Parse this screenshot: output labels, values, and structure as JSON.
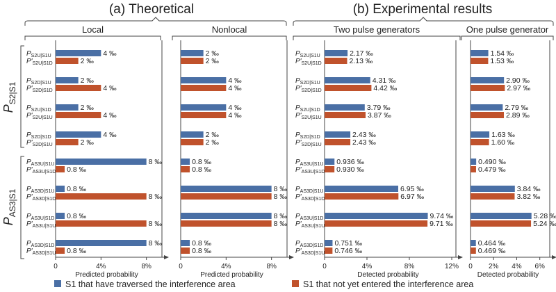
{
  "colors": {
    "blue": "#4a6fa5",
    "red": "#c0522c",
    "axis": "#444444",
    "text": "#222222"
  },
  "chart_data": {
    "type": "bar",
    "unit": "‰",
    "titles": {
      "theoretical": "(a) Theoretical",
      "experimental": "(b) Experimental results"
    },
    "group_labels": {
      "s2": "P_S2|S1",
      "as3": "P_AS3|S1"
    },
    "legend": [
      {
        "series": "blue",
        "label": "S1 that have traversed the interference area"
      },
      {
        "series": "red",
        "label": "S1 that not yet entered the interference area"
      }
    ],
    "panels": [
      {
        "id": "local",
        "title": "Local",
        "xlabel": "Predicted probability",
        "xmax": 9,
        "ticks": [
          {
            "v": 0,
            "label": "0"
          },
          {
            "v": 4,
            "label": "4%"
          },
          {
            "v": 8,
            "label": "8%"
          }
        ],
        "values": [
          {
            "blue": 4,
            "blue_label": "4 ‰",
            "red": 2,
            "red_label": "2 ‰"
          },
          {
            "blue": 2,
            "blue_label": "2 ‰",
            "red": 4,
            "red_label": "4 ‰"
          },
          {
            "blue": 2,
            "blue_label": "2 ‰",
            "red": 4,
            "red_label": "4 ‰"
          },
          {
            "blue": 4,
            "blue_label": "4 ‰",
            "red": 2,
            "red_label": "2 ‰"
          },
          {
            "blue": 8,
            "blue_label": "8 ‰",
            "red": 0.8,
            "red_label": "0.8 ‰"
          },
          {
            "blue": 0.8,
            "blue_label": "0.8 ‰",
            "red": 8,
            "red_label": "8 ‰"
          },
          {
            "blue": 0.8,
            "blue_label": "0.8 ‰",
            "red": 8,
            "red_label": "8 ‰"
          },
          {
            "blue": 8,
            "blue_label": "8 ‰",
            "red": 0.8,
            "red_label": "0.8 ‰"
          }
        ]
      },
      {
        "id": "nonlocal",
        "title": "Nonlocal",
        "xlabel": "Predicted probability",
        "xmax": 9,
        "ticks": [
          {
            "v": 0,
            "label": "0"
          },
          {
            "v": 4,
            "label": "4%"
          },
          {
            "v": 8,
            "label": "8%"
          }
        ],
        "values": [
          {
            "blue": 2,
            "blue_label": "2 ‰",
            "red": 2,
            "red_label": "2 ‰"
          },
          {
            "blue": 4,
            "blue_label": "4 ‰",
            "red": 4,
            "red_label": "4 ‰"
          },
          {
            "blue": 4,
            "blue_label": "4 ‰",
            "red": 4,
            "red_label": "4 ‰"
          },
          {
            "blue": 2,
            "blue_label": "2 ‰",
            "red": 2,
            "red_label": "2 ‰"
          },
          {
            "blue": 0.8,
            "blue_label": "0.8 ‰",
            "red": 0.8,
            "red_label": "0.8 ‰"
          },
          {
            "blue": 8,
            "blue_label": "8 ‰",
            "red": 8,
            "red_label": "8 ‰"
          },
          {
            "blue": 8,
            "blue_label": "8 ‰",
            "red": 8,
            "red_label": "8 ‰"
          },
          {
            "blue": 0.8,
            "blue_label": "0.8 ‰",
            "red": 0.8,
            "red_label": "0.8 ‰"
          }
        ]
      },
      {
        "id": "two_pulse",
        "title": "Two pulse generators",
        "xlabel": "Detected probability",
        "xmax": 12,
        "ticks": [
          {
            "v": 0,
            "label": "0"
          },
          {
            "v": 4,
            "label": "4%"
          },
          {
            "v": 8,
            "label": "8%"
          },
          {
            "v": 12,
            "label": "12%"
          }
        ],
        "values": [
          {
            "blue": 2.17,
            "blue_label": "2.17 ‰",
            "red": 2.13,
            "red_label": "2.13 ‰"
          },
          {
            "blue": 4.31,
            "blue_label": "4.31 ‰",
            "red": 4.42,
            "red_label": "4.42 ‰"
          },
          {
            "blue": 3.79,
            "blue_label": "3.79 ‰",
            "red": 3.87,
            "red_label": "3.87 ‰"
          },
          {
            "blue": 2.43,
            "blue_label": "2.43 ‰",
            "red": 2.43,
            "red_label": "2.43 ‰"
          },
          {
            "blue": 0.936,
            "blue_label": "0.936 ‰",
            "red": 0.93,
            "red_label": "0.930 ‰"
          },
          {
            "blue": 6.95,
            "blue_label": "6.95 ‰",
            "red": 6.97,
            "red_label": "6.97 ‰"
          },
          {
            "blue": 9.74,
            "blue_label": "9.74 ‰",
            "red": 9.71,
            "red_label": "9.71 ‰"
          },
          {
            "blue": 0.751,
            "blue_label": "0.751 ‰",
            "red": 0.746,
            "red_label": "0.746 ‰"
          }
        ]
      },
      {
        "id": "one_pulse",
        "title": "One pulse generator",
        "xlabel": "Detected probability",
        "xmax": 6.5,
        "ticks": [
          {
            "v": 0,
            "label": "0"
          },
          {
            "v": 2,
            "label": "2%"
          },
          {
            "v": 4,
            "label": "4%"
          },
          {
            "v": 6,
            "label": "6%"
          }
        ],
        "values": [
          {
            "blue": 1.54,
            "blue_label": "1.54 ‰",
            "red": 1.53,
            "red_label": "1.53 ‰"
          },
          {
            "blue": 2.9,
            "blue_label": "2.90 ‰",
            "red": 2.97,
            "red_label": "2.97 ‰"
          },
          {
            "blue": 2.79,
            "blue_label": "2.79 ‰",
            "red": 2.89,
            "red_label": "2.89 ‰"
          },
          {
            "blue": 1.63,
            "blue_label": "1.63 ‰",
            "red": 1.6,
            "red_label": "1.60 ‰"
          },
          {
            "blue": 0.49,
            "blue_label": "0.490 ‰",
            "red": 0.479,
            "red_label": "0.479 ‰"
          },
          {
            "blue": 3.84,
            "blue_label": "3.84 ‰",
            "red": 3.82,
            "red_label": "3.82 ‰"
          },
          {
            "blue": 5.28,
            "blue_label": "5.28 ‰",
            "red": 5.24,
            "red_label": "5.24 ‰"
          },
          {
            "blue": 0.464,
            "blue_label": "0.464 ‰",
            "red": 0.469,
            "red_label": "0.469 ‰"
          }
        ]
      }
    ],
    "row_labels": [
      {
        "blue": {
          "p": "P",
          "sub": "S2U|S1U"
        },
        "red": {
          "p": "P'",
          "sub": "S2U|S1D"
        }
      },
      {
        "blue": {
          "p": "P",
          "sub": "S2D|S1U"
        },
        "red": {
          "p": "P'",
          "sub": "S2D|S1D"
        }
      },
      {
        "blue": {
          "p": "P",
          "sub": "S2U|S1D"
        },
        "red": {
          "p": "P'",
          "sub": "S2U|S1U"
        }
      },
      {
        "blue": {
          "p": "P",
          "sub": "S2D|S1D"
        },
        "red": {
          "p": "P'",
          "sub": "S2D|S1U"
        }
      },
      {
        "blue": {
          "p": "P",
          "sub": "AS3U|S1U"
        },
        "red": {
          "p": "P'",
          "sub": "AS3U|S1D"
        }
      },
      {
        "blue": {
          "p": "P",
          "sub": "AS3D|S1U"
        },
        "red": {
          "p": "P'",
          "sub": "AS3D|S1D"
        }
      },
      {
        "blue": {
          "p": "P",
          "sub": "AS3U|S1D"
        },
        "red": {
          "p": "P'",
          "sub": "AS3U|S1U"
        }
      },
      {
        "blue": {
          "p": "P",
          "sub": "AS3D|S1D"
        },
        "red": {
          "p": "P'",
          "sub": "AS3D|S1U"
        }
      }
    ]
  }
}
